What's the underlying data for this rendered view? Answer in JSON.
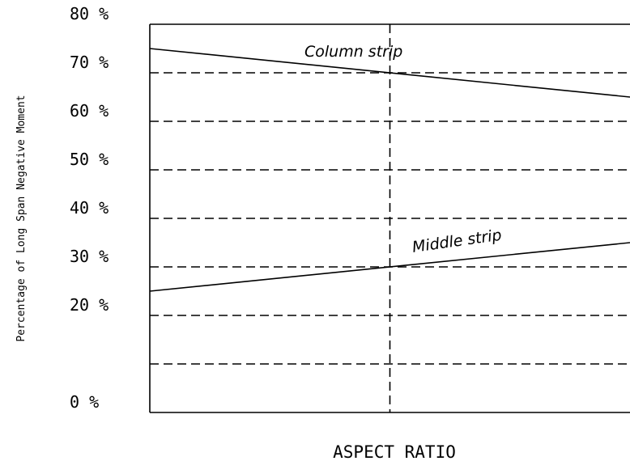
{
  "chart_data": {
    "type": "line",
    "title": "",
    "xlabel": "ASPECT RATIO",
    "ylabel": "Percentage of Long Span Negative Moment",
    "ylim": [
      0,
      80
    ],
    "yticks": [
      {
        "value": 80,
        "label": "80 %"
      },
      {
        "value": 70,
        "label": "70 %"
      },
      {
        "value": 60,
        "label": "60 %"
      },
      {
        "value": 50,
        "label": "50 %"
      },
      {
        "value": 40,
        "label": "40 %"
      },
      {
        "value": 30,
        "label": "30 %"
      },
      {
        "value": 20,
        "label": "20 %"
      },
      {
        "value": 0,
        "label": "0 %"
      }
    ],
    "xlim": [
      0,
      2
    ],
    "x_marker": 1,
    "grid": true,
    "series": [
      {
        "name": "Column strip",
        "x": [
          0,
          2
        ],
        "y": [
          75,
          65
        ]
      },
      {
        "name": "Middle strip",
        "x": [
          0,
          2
        ],
        "y": [
          25,
          35
        ]
      }
    ]
  }
}
